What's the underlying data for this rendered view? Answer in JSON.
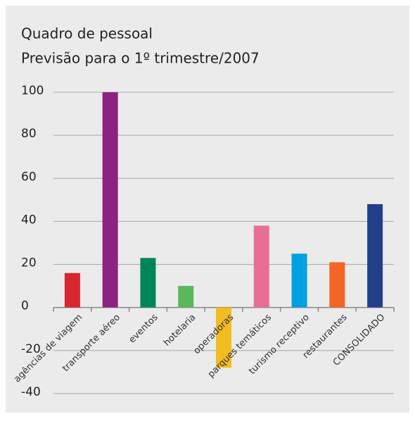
{
  "chart_data": {
    "type": "bar",
    "title": "Quadro de pessoal",
    "subtitle": "Previsão para o 1º trimestre/2007",
    "categories": [
      "agências de viagem",
      "transporte aéreo",
      "eventos",
      "hotelaria",
      "operadoras",
      "parques temáticos",
      "turismo receptivo",
      "restaurantes",
      "CONSOLIDADO"
    ],
    "values": [
      16,
      100,
      23,
      10,
      -28,
      38,
      25,
      21,
      48
    ],
    "colors": [
      "#d7282f",
      "#8c2381",
      "#00855b",
      "#5bb75b",
      "#f2bd22",
      "#e96e94",
      "#00a1df",
      "#f26524",
      "#233e8c"
    ],
    "ylim": [
      -40,
      100
    ],
    "yticks": [
      -40,
      -20,
      0,
      20,
      40,
      60,
      80,
      100
    ],
    "grid": true
  }
}
